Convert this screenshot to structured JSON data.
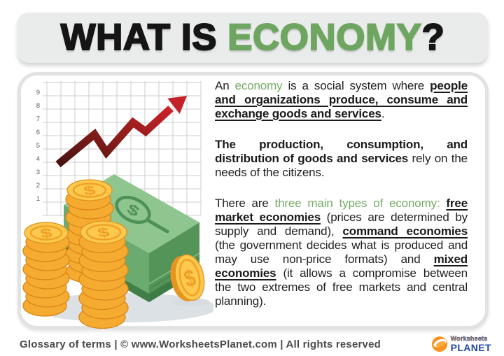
{
  "title": {
    "black1": "WHAT IS ",
    "green": "ECONOMY",
    "black2": "?"
  },
  "colors": {
    "title_green": "#6ea661",
    "body_green": "#74ab64",
    "arrow_dark_red": "#4a130f",
    "arrow_bright_red": "#c5212b",
    "coin_gold_face": "#fcc84d",
    "coin_gold_side": "#f5ab30",
    "bill_green_top": "#8fc68f",
    "bill_green_side": "#549459",
    "footer_text": "#4a4a4a",
    "logo_orange": "#f7941d",
    "logo_blue": "#20479e"
  },
  "illustration": {
    "axis_labels": [
      "9",
      "8",
      "7",
      "6",
      "5",
      "4",
      "3",
      "2",
      "1"
    ],
    "coin_symbol": "$"
  },
  "paragraphs": {
    "p1": {
      "s0": "An ",
      "s1": "economy",
      "s2": " is a social system where ",
      "s3": "people and organizations produce, consume and exchange goods and services",
      "s4": "."
    },
    "p2": {
      "s0": "The production, consumption, and distribution of goods and services",
      "s1": " rely on the needs of the citizens."
    },
    "p3": {
      "s0": "There are ",
      "s1": "three main types of economy:",
      "s2": " ",
      "s3": "free market economies",
      "s4": " (prices are determined by supply and demand), ",
      "s5": "command economies",
      "s6": " (the government decides what is produced and may use non-price formats) and ",
      "s7": "mixed economies",
      "s8": " (it allows a compromise between the two extremes of free markets and central planning)."
    }
  },
  "footer": {
    "text": "Glossary of terms | © www.WorksheetsPlanet.com | All rights reserved",
    "logo_top": "Worksheets",
    "logo_bottom": "PLANET"
  }
}
